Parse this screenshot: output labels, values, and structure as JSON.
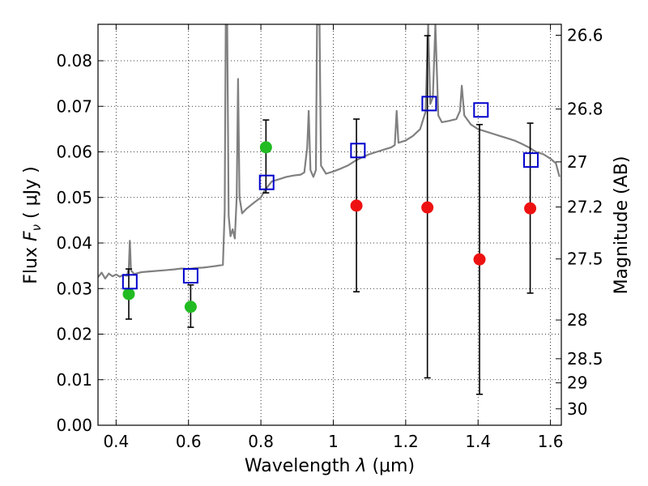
{
  "chart_data": {
    "type": "scatter",
    "xlabel_prefix": "Wavelength",
    "xlabel_symbol": "λ",
    "xlabel_unit": "(μm)",
    "ylabel_prefix": "Flux",
    "ylabel_symbol": "F",
    "ylabel_subscript": "ν",
    "ylabel_unit": "( μJy )",
    "y2label": "Magnitude (AB)",
    "xlim": [
      0.35,
      1.63
    ],
    "ylim": [
      0.0,
      0.088
    ],
    "xticks": [
      0.4,
      0.6,
      0.8,
      1.0,
      1.2,
      1.4,
      1.6
    ],
    "xtick_labels": [
      "0.4",
      "0.6",
      "0.8",
      "1",
      "1.2",
      "1.4",
      "1.6"
    ],
    "yticks": [
      0.0,
      0.01,
      0.02,
      0.03,
      0.04,
      0.05,
      0.06,
      0.07,
      0.08
    ],
    "ytick_labels": [
      "0.00",
      "0.01",
      "0.02",
      "0.03",
      "0.04",
      "0.05",
      "0.06",
      "0.07",
      "0.08"
    ],
    "y2ticks": [
      {
        "flux": 0.0856,
        "label": "26.6"
      },
      {
        "flux": 0.0694,
        "label": "26.8"
      },
      {
        "flux": 0.0578,
        "label": "27"
      },
      {
        "flux": 0.0479,
        "label": "27.2"
      },
      {
        "flux": 0.0365,
        "label": "27.5"
      },
      {
        "flux": 0.0231,
        "label": "28"
      },
      {
        "flux": 0.0146,
        "label": "28.5"
      },
      {
        "flux": 0.0093,
        "label": "29"
      },
      {
        "flux": 0.0036,
        "label": "30"
      }
    ],
    "grid": true,
    "colors": {
      "spectrum": "#808080",
      "model_squares": "#0000cc",
      "green_points": "#22bb22",
      "red_points": "#ee1111",
      "errorbars": "#000000"
    },
    "series": [
      {
        "kind": "spectrum",
        "points": [
          [
            0.35,
            0.0325
          ],
          [
            0.36,
            0.0335
          ],
          [
            0.37,
            0.0322
          ],
          [
            0.38,
            0.0333
          ],
          [
            0.39,
            0.0327
          ],
          [
            0.4,
            0.0331
          ],
          [
            0.41,
            0.0326
          ],
          [
            0.42,
            0.033
          ],
          [
            0.43,
            0.0328
          ],
          [
            0.435,
            0.0345
          ],
          [
            0.438,
            0.0405
          ],
          [
            0.441,
            0.034
          ],
          [
            0.45,
            0.0332
          ],
          [
            0.47,
            0.0336
          ],
          [
            0.5,
            0.0338
          ],
          [
            0.53,
            0.034
          ],
          [
            0.56,
            0.0342
          ],
          [
            0.58,
            0.0344
          ],
          [
            0.6,
            0.0343
          ],
          [
            0.62,
            0.0345
          ],
          [
            0.64,
            0.0346
          ],
          [
            0.66,
            0.0348
          ],
          [
            0.68,
            0.035
          ],
          [
            0.695,
            0.0352
          ],
          [
            0.7,
            0.047
          ],
          [
            0.703,
            0.088
          ],
          [
            0.707,
            0.088
          ],
          [
            0.711,
            0.046
          ],
          [
            0.716,
            0.0415
          ],
          [
            0.722,
            0.043
          ],
          [
            0.728,
            0.041
          ],
          [
            0.733,
            0.05
          ],
          [
            0.737,
            0.076
          ],
          [
            0.741,
            0.05
          ],
          [
            0.748,
            0.0465
          ],
          [
            0.76,
            0.0475
          ],
          [
            0.78,
            0.0488
          ],
          [
            0.8,
            0.05
          ],
          [
            0.81,
            0.0515
          ],
          [
            0.82,
            0.0525
          ],
          [
            0.83,
            0.0535
          ],
          [
            0.85,
            0.054
          ],
          [
            0.87,
            0.0545
          ],
          [
            0.89,
            0.0548
          ],
          [
            0.91,
            0.055
          ],
          [
            0.92,
            0.0555
          ],
          [
            0.928,
            0.061
          ],
          [
            0.932,
            0.069
          ],
          [
            0.937,
            0.056
          ],
          [
            0.945,
            0.0545
          ],
          [
            0.952,
            0.056
          ],
          [
            0.955,
            0.088
          ],
          [
            0.962,
            0.088
          ],
          [
            0.966,
            0.057
          ],
          [
            0.98,
            0.0552
          ],
          [
            1.0,
            0.0557
          ],
          [
            1.02,
            0.0563
          ],
          [
            1.04,
            0.057
          ],
          [
            1.06,
            0.058
          ],
          [
            1.08,
            0.0588
          ],
          [
            1.1,
            0.0595
          ],
          [
            1.12,
            0.06
          ],
          [
            1.14,
            0.0605
          ],
          [
            1.16,
            0.061
          ],
          [
            1.17,
            0.0615
          ],
          [
            1.175,
            0.069
          ],
          [
            1.18,
            0.062
          ],
          [
            1.2,
            0.0625
          ],
          [
            1.22,
            0.0635
          ],
          [
            1.24,
            0.065
          ],
          [
            1.255,
            0.0688
          ],
          [
            1.262,
            0.088
          ],
          [
            1.268,
            0.0705
          ],
          [
            1.275,
            0.072
          ],
          [
            1.282,
            0.088
          ],
          [
            1.29,
            0.068
          ],
          [
            1.3,
            0.0665
          ],
          [
            1.32,
            0.0668
          ],
          [
            1.34,
            0.0672
          ],
          [
            1.35,
            0.069
          ],
          [
            1.355,
            0.0745
          ],
          [
            1.362,
            0.068
          ],
          [
            1.38,
            0.066
          ],
          [
            1.4,
            0.065
          ],
          [
            1.42,
            0.0645
          ],
          [
            1.44,
            0.064
          ],
          [
            1.46,
            0.0635
          ],
          [
            1.48,
            0.063
          ],
          [
            1.5,
            0.0625
          ],
          [
            1.52,
            0.0618
          ],
          [
            1.54,
            0.061
          ],
          [
            1.56,
            0.06
          ],
          [
            1.58,
            0.0595
          ],
          [
            1.6,
            0.0585
          ],
          [
            1.615,
            0.0575
          ],
          [
            1.625,
            0.0545
          ]
        ]
      },
      {
        "kind": "open_squares",
        "points": [
          {
            "x": 0.438,
            "y": 0.0315
          },
          {
            "x": 0.606,
            "y": 0.0328
          },
          {
            "x": 0.816,
            "y": 0.0533
          },
          {
            "x": 1.068,
            "y": 0.0603
          },
          {
            "x": 1.265,
            "y": 0.0706
          },
          {
            "x": 1.408,
            "y": 0.0692
          },
          {
            "x": 1.546,
            "y": 0.0582
          }
        ]
      },
      {
        "kind": "green_points",
        "points": [
          {
            "x": 0.435,
            "y": 0.0288,
            "err_lo": 0.0233,
            "err_hi": 0.0343
          },
          {
            "x": 0.606,
            "y": 0.026,
            "err_lo": 0.0215,
            "err_hi": 0.0308
          },
          {
            "x": 0.814,
            "y": 0.061,
            "err_lo": 0.051,
            "err_hi": 0.067
          }
        ]
      },
      {
        "kind": "red_points",
        "points": [
          {
            "x": 1.064,
            "y": 0.0482,
            "err_lo": 0.0293,
            "err_hi": 0.0672
          },
          {
            "x": 1.26,
            "y": 0.0478,
            "err_lo": 0.0104,
            "err_hi": 0.0855
          },
          {
            "x": 1.404,
            "y": 0.0364,
            "err_lo": 0.0068,
            "err_hi": 0.066
          },
          {
            "x": 1.544,
            "y": 0.0476,
            "err_lo": 0.029,
            "err_hi": 0.0663
          }
        ]
      }
    ]
  }
}
